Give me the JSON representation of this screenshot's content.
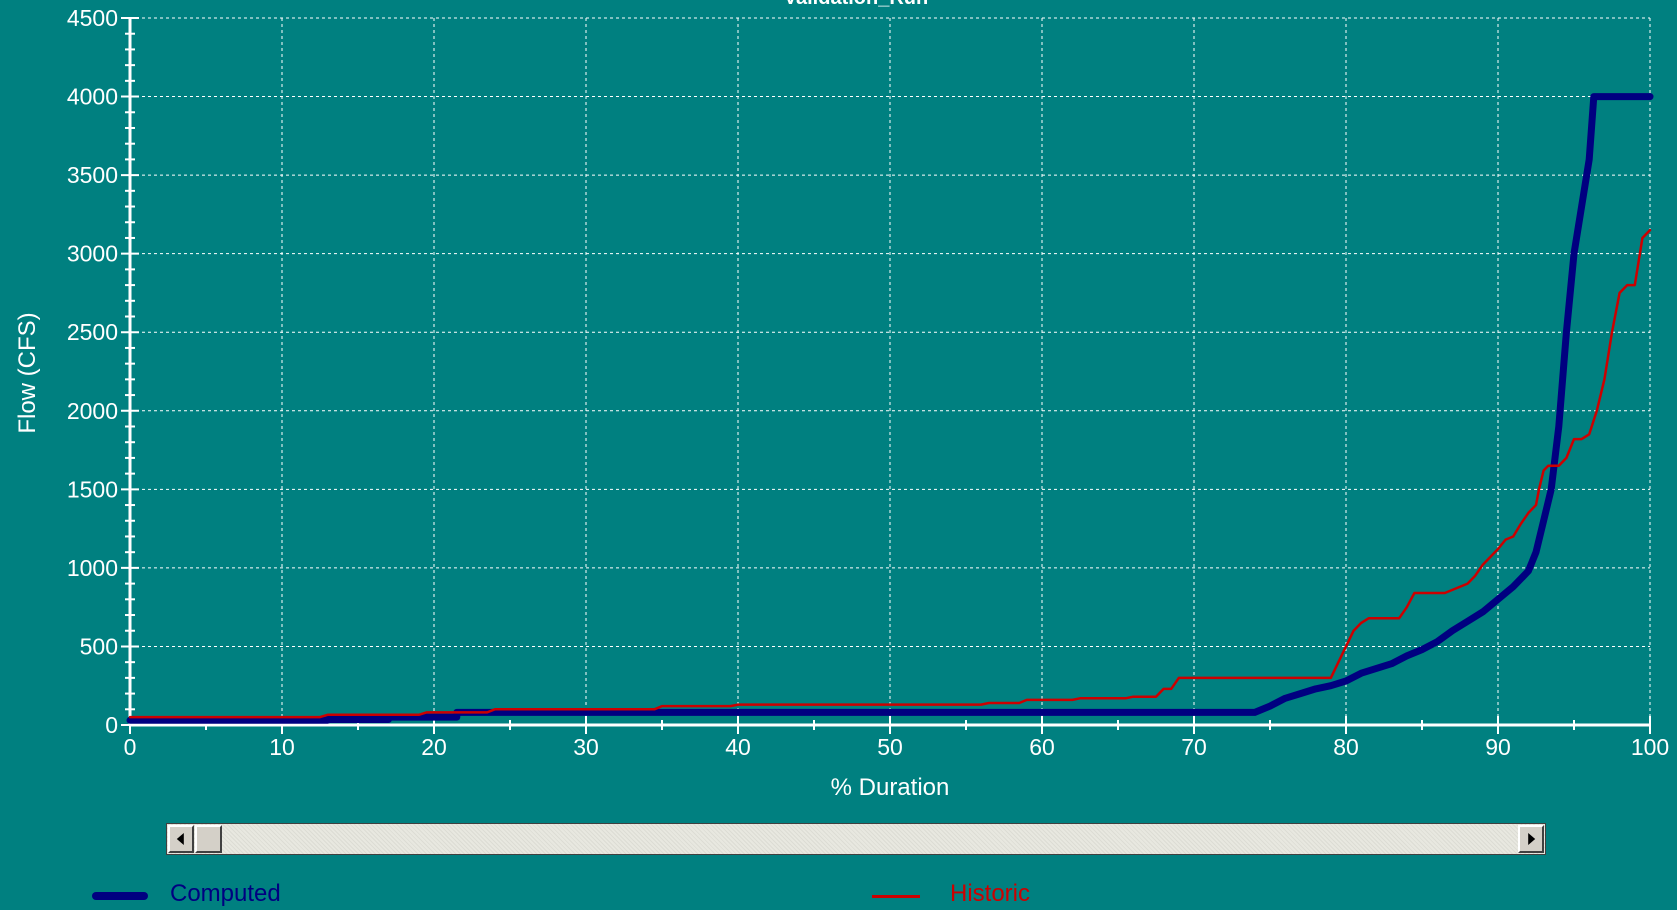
{
  "chart_data": {
    "type": "line",
    "title": "Validation_Run",
    "xlabel": "% Duration",
    "ylabel": "Flow (CFS)",
    "xlim": [
      0,
      100
    ],
    "ylim": [
      0,
      4500
    ],
    "x_ticks": [
      0,
      10,
      20,
      30,
      40,
      50,
      60,
      70,
      80,
      90,
      100
    ],
    "y_ticks": [
      0,
      500,
      1000,
      1500,
      2000,
      2500,
      3000,
      3500,
      4000,
      4500
    ],
    "grid": true,
    "legend_position": "bottom",
    "series": [
      {
        "name": "Computed",
        "color": "#000080",
        "x": [
          0,
          13,
          13,
          17,
          17,
          21.5,
          21.5,
          74,
          75,
          76,
          77,
          78,
          79,
          80,
          81,
          82,
          83,
          84,
          85,
          86,
          87,
          88,
          89,
          90,
          91,
          92,
          92.5,
          93,
          93.5,
          94,
          94.5,
          95,
          95.5,
          96,
          96.3,
          97,
          98,
          99,
          100
        ],
        "y": [
          30,
          30,
          35,
          35,
          50,
          50,
          80,
          80,
          120,
          170,
          200,
          230,
          250,
          280,
          330,
          360,
          390,
          440,
          480,
          530,
          600,
          660,
          720,
          800,
          880,
          980,
          1100,
          1300,
          1500,
          1900,
          2500,
          3000,
          3300,
          3600,
          4000,
          4000,
          4000,
          4000,
          4000
        ]
      },
      {
        "name": "Historic",
        "color": "#cc0000",
        "x": [
          0,
          12.5,
          13,
          19,
          19.5,
          23.5,
          24,
          34.5,
          35,
          39.5,
          40,
          56,
          56.5,
          58.5,
          59,
          62,
          62.5,
          65.5,
          66,
          67.5,
          68,
          68.5,
          69,
          79,
          79.5,
          80,
          80.5,
          81,
          81.5,
          83.5,
          84,
          84.5,
          86.5,
          87,
          88,
          88.5,
          89,
          89.5,
          90,
          90.5,
          91,
          91.5,
          92,
          92.5,
          92.7,
          93,
          93.3,
          94,
          94.5,
          95,
          95.5,
          96,
          96.5,
          97,
          97.5,
          98,
          98.5,
          99,
          99.5,
          100
        ],
        "y": [
          50,
          50,
          65,
          65,
          80,
          80,
          100,
          100,
          120,
          120,
          130,
          130,
          140,
          140,
          160,
          160,
          170,
          170,
          180,
          180,
          230,
          230,
          300,
          300,
          400,
          500,
          600,
          650,
          680,
          680,
          750,
          840,
          840,
          860,
          900,
          950,
          1020,
          1070,
          1120,
          1180,
          1200,
          1280,
          1350,
          1400,
          1500,
          1620,
          1650,
          1650,
          1700,
          1820,
          1820,
          1850,
          2000,
          2200,
          2500,
          2750,
          2800,
          2800,
          3100,
          3150
        ]
      }
    ]
  },
  "legend": {
    "computed_label": "Computed",
    "historic_label": "Historic"
  }
}
